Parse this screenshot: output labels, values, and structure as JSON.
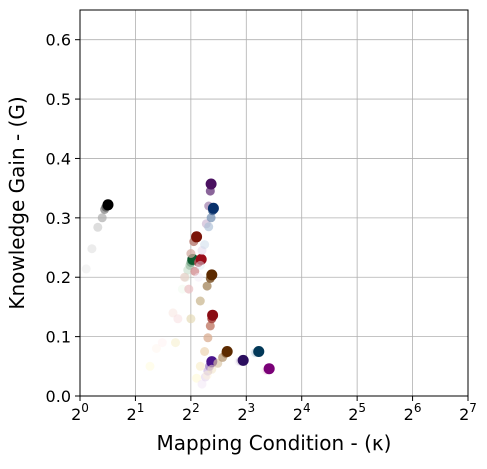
{
  "chart_data": {
    "type": "scatter",
    "title": "",
    "xlabel": "Mapping Condition - (κ)",
    "ylabel": "Knowledge Gain - (G)",
    "x_scale": "log2",
    "xlim": [
      1,
      128
    ],
    "ylim": [
      0,
      0.65
    ],
    "x_ticks": [
      1,
      2,
      4,
      8,
      16,
      32,
      64,
      128
    ],
    "x_tick_labels": [
      {
        "base": "2",
        "exp": "0"
      },
      {
        "base": "2",
        "exp": "1"
      },
      {
        "base": "2",
        "exp": "2"
      },
      {
        "base": "2",
        "exp": "3"
      },
      {
        "base": "2",
        "exp": "4"
      },
      {
        "base": "2",
        "exp": "5"
      },
      {
        "base": "2",
        "exp": "6"
      },
      {
        "base": "2",
        "exp": "7"
      }
    ],
    "y_ticks": [
      0.0,
      0.1,
      0.2,
      0.3,
      0.4,
      0.5,
      0.6
    ],
    "y_tick_labels": [
      "0.0",
      "0.1",
      "0.2",
      "0.3",
      "0.4",
      "0.5",
      "0.6"
    ],
    "grid": true,
    "legend": false,
    "series": [
      {
        "color": "#000000",
        "fade": "#e6e6e6",
        "x": [
          1.08,
          1.16,
          1.25,
          1.32,
          1.36,
          1.38,
          1.4,
          1.42
        ],
        "y": [
          0.214,
          0.248,
          0.284,
          0.3,
          0.314,
          0.318,
          0.32,
          0.322
        ]
      },
      {
        "color": "#0b5a2e",
        "fade": "#eef8ea",
        "x": [
          3.6,
          3.75,
          3.85,
          3.95,
          4.0,
          4.05,
          4.1
        ],
        "y": [
          0.18,
          0.2,
          0.212,
          0.22,
          0.225,
          0.228,
          0.23
        ]
      },
      {
        "color": "#7a1408",
        "fade": "#fff3ec",
        "x": [
          2.6,
          3.2,
          3.7,
          4.0,
          4.15,
          4.25,
          4.3
        ],
        "y": [
          0.08,
          0.14,
          0.2,
          0.24,
          0.26,
          0.266,
          0.268
        ]
      },
      {
        "color": "#9a0d1a",
        "fade": "#fff0f0",
        "x": [
          2.8,
          3.4,
          3.9,
          4.2,
          4.4,
          4.55
        ],
        "y": [
          0.09,
          0.13,
          0.18,
          0.21,
          0.225,
          0.23
        ]
      },
      {
        "color": "#5c2a00",
        "fade": "#fffbd5",
        "x": [
          2.4,
          3.3,
          4.0,
          4.5,
          4.9,
          5.1,
          5.2
        ],
        "y": [
          0.05,
          0.09,
          0.13,
          0.16,
          0.185,
          0.198,
          0.204
        ]
      },
      {
        "color": "#8a0c14",
        "fade": "#fff8c8",
        "x": [
          4.3,
          4.5,
          4.75,
          4.95,
          5.1,
          5.2,
          5.25
        ],
        "y": [
          0.03,
          0.05,
          0.075,
          0.098,
          0.118,
          0.13,
          0.136
        ]
      },
      {
        "color": "#4a1160",
        "fade": "#f2e8f6",
        "x": [
          4.4,
          4.6,
          4.85,
          5.0,
          5.1,
          5.15
        ],
        "y": [
          0.2,
          0.245,
          0.29,
          0.32,
          0.345,
          0.357
        ]
      },
      {
        "color": "#08306b",
        "fade": "#deebf7",
        "x": [
          4.5,
          4.75,
          5.0,
          5.15,
          5.25,
          5.3
        ],
        "y": [
          0.22,
          0.255,
          0.285,
          0.3,
          0.312,
          0.316
        ]
      },
      {
        "color": "#4a148c",
        "fade": "#efe3f4",
        "x": [
          4.6,
          4.8,
          4.95,
          5.05,
          5.15,
          5.2
        ],
        "y": [
          0.02,
          0.032,
          0.042,
          0.05,
          0.055,
          0.058
        ]
      },
      {
        "color": "#5c2a00",
        "fade": "#fff3d6",
        "x": [
          4.9,
          5.2,
          5.6,
          5.95,
          6.2,
          6.3
        ],
        "y": [
          0.035,
          0.045,
          0.055,
          0.065,
          0.072,
          0.075
        ]
      },
      {
        "color": "#2b0e5e",
        "fade": "#efe9f5",
        "x": [
          7.3,
          7.45,
          7.6,
          7.7
        ],
        "y": [
          0.058,
          0.059,
          0.06,
          0.06
        ]
      },
      {
        "color": "#023858",
        "fade": "#ebf3fa",
        "x": [
          8.8,
          9.0,
          9.2,
          9.35
        ],
        "y": [
          0.072,
          0.073,
          0.074,
          0.075
        ]
      },
      {
        "color": "#7a0177",
        "fade": "#fbe6ef",
        "x": [
          10.2,
          10.4,
          10.55,
          10.65
        ],
        "y": [
          0.043,
          0.044,
          0.045,
          0.046
        ]
      }
    ]
  }
}
